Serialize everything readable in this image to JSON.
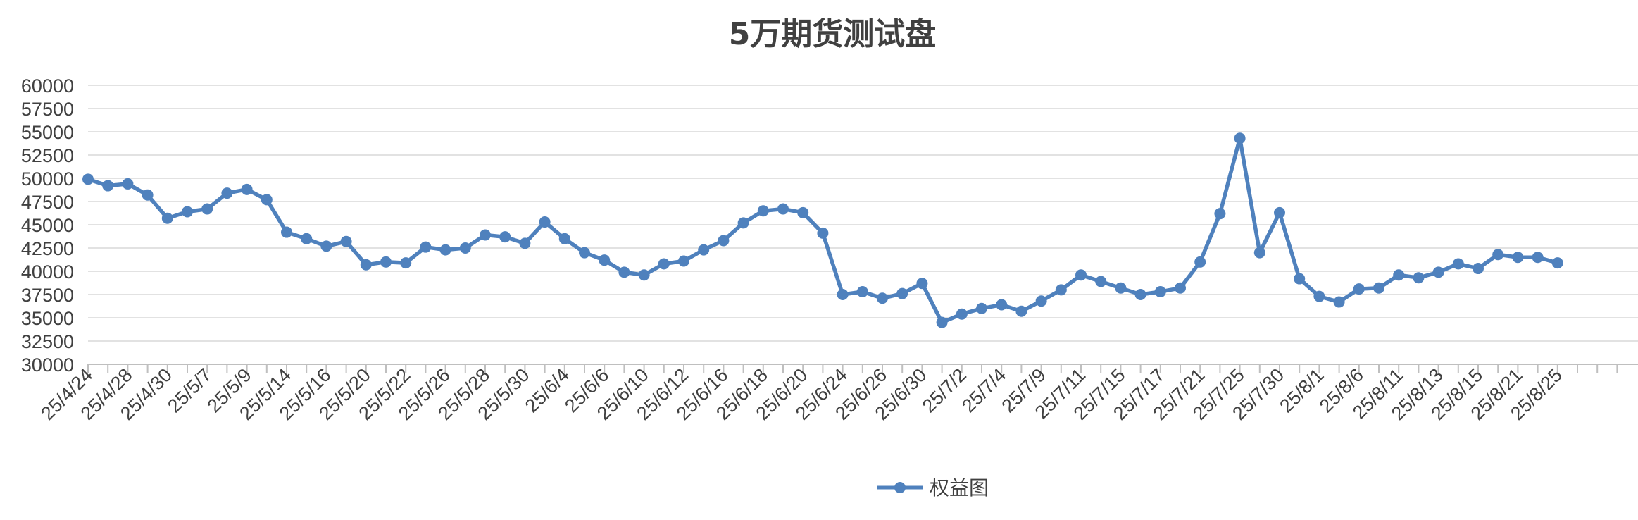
{
  "chart_data": {
    "type": "line",
    "title": "5万期货测试盘",
    "xlabel": "",
    "ylabel": "",
    "ylim": [
      30000,
      60000
    ],
    "yticks": [
      30000,
      32500,
      35000,
      37500,
      40000,
      42500,
      45000,
      47500,
      50000,
      52500,
      55000,
      57500,
      60000
    ],
    "grid": true,
    "legend_position": "bottom",
    "series_color": "#4f81bd",
    "x_tick_labels": [
      "25/4/24",
      "25/4/28",
      "25/4/30",
      "25/5/7",
      "25/5/9",
      "25/5/14",
      "25/5/16",
      "25/5/20",
      "25/5/22",
      "25/5/26",
      "25/5/28",
      "25/5/30",
      "25/6/4",
      "25/6/6",
      "25/6/10",
      "25/6/12",
      "25/6/16",
      "25/6/18",
      "25/6/20",
      "25/6/24",
      "25/6/26",
      "25/6/30",
      "25/7/2",
      "25/7/4",
      "25/7/9",
      "25/7/11",
      "25/7/15",
      "25/7/17",
      "25/7/21",
      "25/7/25",
      "25/7/30",
      "25/8/1",
      "25/8/6",
      "25/8/11",
      "25/8/13",
      "25/8/15",
      "25/8/21",
      "25/8/25"
    ],
    "series": [
      {
        "name": "权益图",
        "values": [
          49900,
          49200,
          49400,
          48200,
          45700,
          46400,
          46700,
          48400,
          48800,
          47700,
          44200,
          43500,
          42700,
          43200,
          40700,
          41000,
          40900,
          42600,
          42300,
          42500,
          43900,
          43700,
          43000,
          45300,
          43500,
          42000,
          41200,
          39900,
          39600,
          40800,
          41100,
          42300,
          43300,
          45200,
          46500,
          46700,
          46300,
          44100,
          37500,
          37800,
          37100,
          37600,
          38700,
          34500,
          35400,
          36000,
          36400,
          35700,
          36800,
          38000,
          39600,
          38900,
          38200,
          37500,
          37800,
          38200,
          41000,
          46200,
          54300,
          42000,
          46300,
          39200,
          37300,
          36700,
          38100,
          38200,
          39600,
          39300,
          39900,
          40800,
          40300,
          41800,
          41500,
          41500,
          40900
        ]
      }
    ]
  }
}
